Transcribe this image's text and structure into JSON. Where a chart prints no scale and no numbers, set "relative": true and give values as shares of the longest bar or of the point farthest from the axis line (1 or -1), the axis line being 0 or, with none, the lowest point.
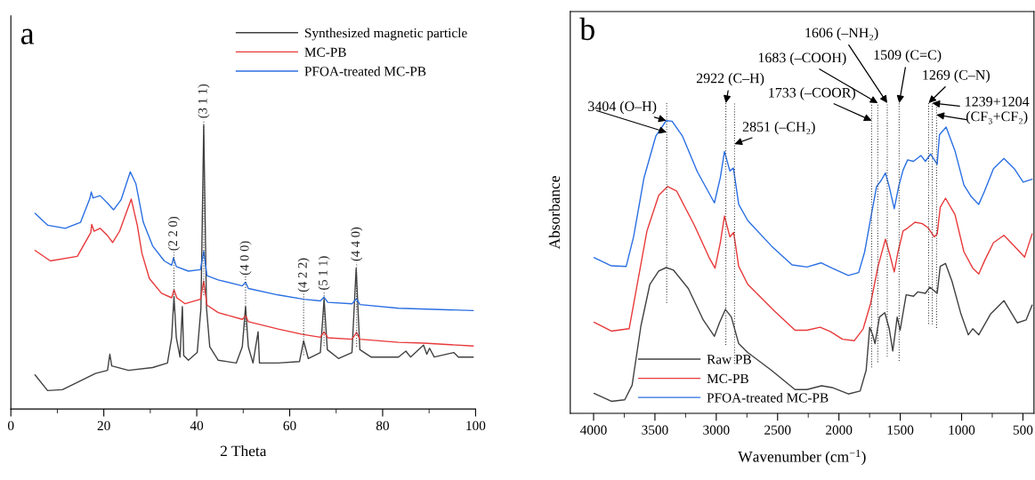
{
  "chart_data": [
    {
      "type": "line",
      "title": "a",
      "xlabel": "2 Theta",
      "relative": true,
      "tick_labels": "x",
      "legend": "top right",
      "grid": false,
      "xlim": [
        0,
        100
      ],
      "xticks": [
        0,
        {
          "value": 10,
          "label": null
        },
        20,
        {
          "value": 30,
          "label": null
        },
        40,
        {
          "value": 50,
          "label": null
        },
        60,
        {
          "value": 70,
          "label": null
        },
        80,
        {
          "value": 90,
          "label": null
        },
        100
      ],
      "ref_lines": [
        {
          "axis": "x",
          "value": 35.1,
          "line_style": "dotted",
          "color": "#404040"
        },
        {
          "axis": "x",
          "value": 41.5,
          "line_style": "dotted",
          "color": "#404040"
        },
        {
          "axis": "x",
          "value": 50.5,
          "line_style": "dotted",
          "color": "#404040"
        },
        {
          "axis": "x",
          "value": 63.0,
          "line_style": "dotted",
          "color": "#404040"
        },
        {
          "axis": "x",
          "value": 67.4,
          "line_style": "dotted",
          "color": "#404040"
        },
        {
          "axis": "x",
          "value": 74.4,
          "line_style": "dotted",
          "color": "#404040"
        }
      ],
      "annotations": [
        {
          "text": "(2 2 0)",
          "x": 35.1,
          "y": 0.533
        },
        {
          "text": "(3 1 1)",
          "x": 41.5,
          "y": 1
        },
        {
          "text": "(4 0 0)",
          "x": 50.5,
          "y": 0.447
        },
        {
          "text": "(4 2 2)",
          "x": 63.0,
          "y": 0.387
        },
        {
          "text": "(5 1 1)",
          "x": 67.4,
          "y": 0.394
        },
        {
          "text": "(4 4 0)",
          "x": 74.4,
          "y": 0.496
        }
      ],
      "series": [
        {
          "name": "Synthesized magnetic particle",
          "color": "#404040",
          "x": [
            5.2,
            7.9,
            11.1,
            15.0,
            18.2,
            20.8,
            21.3,
            21.7,
            25.3,
            30.5,
            33.7,
            34.6,
            35.1,
            35.6,
            36.4,
            36.9,
            37.2,
            38.2,
            40.1,
            40.9,
            41.5,
            42.1,
            42.8,
            44.6,
            48.5,
            49.8,
            50.5,
            51.1,
            52.1,
            53.2,
            53.5,
            57.5,
            62.1,
            63.0,
            64.0,
            66.6,
            67.4,
            68.1,
            70.5,
            73.4,
            74.3,
            75.1,
            77.5,
            83.4,
            85.0,
            86.0,
            88.8,
            89.5,
            90.1,
            91.1,
            95.3,
            96.3,
            99.5
          ],
          "values": [
            0.12,
            0.065,
            0.068,
            0.099,
            0.125,
            0.136,
            0.193,
            0.152,
            0.136,
            0.146,
            0.162,
            0.251,
            0.397,
            0.251,
            0.183,
            0.361,
            0.188,
            0.172,
            0.199,
            0.355,
            1,
            0.355,
            0.219,
            0.172,
            0.162,
            0.219,
            0.361,
            0.219,
            0.162,
            0.272,
            0.162,
            0.162,
            0.167,
            0.24,
            0.178,
            0.199,
            0.387,
            0.209,
            0.178,
            0.199,
            0.496,
            0.209,
            0.183,
            0.183,
            0.204,
            0.183,
            0.225,
            0.193,
            0.214,
            0.183,
            0.199,
            0.183,
            0.183
          ]
        },
        {
          "name": "MC-PB",
          "color": "#e8393a",
          "x": [
            5.2,
            8.5,
            14.3,
            17.2,
            17.4,
            17.9,
            19.2,
            20.8,
            21.9,
            23.4,
            25.9,
            27.2,
            28.2,
            29.8,
            32.4,
            34.6,
            35.1,
            35.7,
            37.5,
            40.8,
            41.5,
            42.2,
            44.6,
            49.8,
            50.5,
            51.1,
            57.5,
            62.7,
            66.6,
            67.4,
            68.2,
            73.4,
            74.4,
            75.1,
            83.4,
            88.8,
            99.5
          ],
          "values": [
            0.559,
            0.522,
            0.538,
            0.622,
            0.651,
            0.627,
            0.637,
            0.611,
            0.587,
            0.627,
            0.74,
            0.648,
            0.549,
            0.46,
            0.408,
            0.392,
            0.42,
            0.392,
            0.371,
            0.387,
            0.451,
            0.366,
            0.34,
            0.316,
            0.329,
            0.308,
            0.282,
            0.263,
            0.253,
            0.272,
            0.251,
            0.246,
            0.27,
            0.246,
            0.235,
            0.232,
            0.222
          ]
        },
        {
          "name": "PFOA-treated MC-PB",
          "color": "#2a6fe3",
          "x": [
            5.2,
            7.9,
            11.7,
            15.0,
            17.0,
            17.3,
            17.7,
            19.2,
            20.8,
            22.1,
            23.7,
            25.7,
            26.9,
            28.5,
            30.5,
            33.0,
            34.6,
            35.0,
            35.6,
            38.2,
            40.8,
            41.5,
            42.2,
            44.6,
            49.8,
            50.5,
            51.1,
            57.5,
            63.0,
            66.6,
            67.4,
            68.2,
            73.4,
            74.4,
            75.1,
            83.4,
            99.5
          ],
          "values": [
            0.69,
            0.648,
            0.637,
            0.658,
            0.742,
            0.765,
            0.744,
            0.752,
            0.726,
            0.702,
            0.737,
            0.836,
            0.794,
            0.658,
            0.575,
            0.522,
            0.507,
            0.533,
            0.502,
            0.486,
            0.491,
            0.556,
            0.47,
            0.455,
            0.434,
            0.447,
            0.425,
            0.402,
            0.387,
            0.381,
            0.394,
            0.376,
            0.371,
            0.389,
            0.368,
            0.355,
            0.347
          ]
        }
      ]
    },
    {
      "type": "line",
      "title": "b",
      "xlabel": "Wavenumber (cm$^{−1}$)",
      "ylabel": "Absorbance",
      "relative": true,
      "tick_labels": "x",
      "legend": "bottom left",
      "grid": false,
      "xlim": [
        4190,
        410
      ],
      "xticks": [
        4000,
        {
          "value": 3750,
          "label": null
        },
        3500,
        {
          "value": 3250,
          "label": null
        },
        3000,
        {
          "value": 2750,
          "label": null
        },
        2500,
        {
          "value": 2250,
          "label": null
        },
        2000,
        {
          "value": 1750,
          "label": null
        },
        1500,
        {
          "value": 1250,
          "label": null
        },
        1000,
        {
          "value": 750,
          "label": null
        },
        500
      ],
      "ref_lines": [
        {
          "axis": "x",
          "value": 3404,
          "line_style": "dotted",
          "color": "#404040"
        },
        {
          "axis": "x",
          "value": 2922,
          "line_style": "dotted",
          "color": "#404040"
        },
        {
          "axis": "x",
          "value": 2851,
          "line_style": "dotted",
          "color": "#404040"
        },
        {
          "axis": "x",
          "value": 1733,
          "line_style": "dotted",
          "color": "#404040"
        },
        {
          "axis": "x",
          "value": 1683,
          "line_style": "dotted",
          "color": "#404040"
        },
        {
          "axis": "x",
          "value": 1606,
          "line_style": "dotted",
          "color": "#404040"
        },
        {
          "axis": "x",
          "value": 1509,
          "line_style": "dotted",
          "color": "#404040"
        },
        {
          "axis": "x",
          "value": 1269,
          "line_style": "dotted",
          "color": "#404040"
        },
        {
          "axis": "x",
          "value": 1239,
          "line_style": "dotted",
          "color": "#404040"
        },
        {
          "axis": "x",
          "value": 1204,
          "line_style": "dotted",
          "color": "#404040"
        }
      ],
      "annotations": [
        {
          "text": "3404 (O–H)",
          "x": 3408,
          "y": 1
        },
        {
          "text": "2922 (C–H)",
          "x": 2922,
          "y": 1.06
        },
        {
          "text": "2851 (–CH₂)",
          "x": 2851,
          "y": 0.92
        },
        {
          "text": "1733 (–COOR)",
          "x": 1733,
          "y": 1.0
        },
        {
          "text": "1683 (–COOH)",
          "x": 1683,
          "y": 1.06
        },
        {
          "text": "1606 (–NH₂)",
          "x": 1606,
          "y": 1.06
        },
        {
          "text": "1509 (C=C)",
          "x": 1509,
          "y": 1.06
        },
        {
          "text": "1269 (C–N)",
          "x": 1269,
          "y": 1.06
        },
        {
          "text": "1239+1204\n(CF₃+CF₂)",
          "x": 1239,
          "y": 1.06
        }
      ],
      "series": [
        {
          "name": "Raw PB",
          "color": "#404040",
          "x": [
            3995,
            3855,
            3746,
            3686,
            3614,
            3541,
            3469,
            3408,
            3348,
            3227,
            3106,
            3015,
            2974,
            2925,
            2877,
            2817,
            2744,
            2551,
            2358,
            2261,
            2141,
            2056,
            1923,
            1827,
            1778,
            1749,
            1725,
            1706,
            1669,
            1626,
            1590,
            1561,
            1537,
            1525,
            1501,
            1452,
            1392,
            1356,
            1295,
            1259,
            1199,
            1174,
            1131,
            1078,
            1005,
            945,
            909,
            860,
            764,
            655,
            546,
            474,
            425
          ],
          "values": [
            0.068,
            0.041,
            0.046,
            0.096,
            0.299,
            0.441,
            0.486,
            0.498,
            0.489,
            0.426,
            0.319,
            0.263,
            0.309,
            0.355,
            0.329,
            0.238,
            0.208,
            0.147,
            0.081,
            0.081,
            0.094,
            0.088,
            0.066,
            0.076,
            0.147,
            0.294,
            0.268,
            0.238,
            0.329,
            0.344,
            0.289,
            0.213,
            0.289,
            0.329,
            0.284,
            0.405,
            0.4,
            0.415,
            0.41,
            0.431,
            0.41,
            0.502,
            0.512,
            0.451,
            0.339,
            0.268,
            0.289,
            0.268,
            0.339,
            0.385,
            0.309,
            0.319,
            0.37
          ]
        },
        {
          "name": "MC-PB",
          "color": "#e8393a",
          "x": [
            3995,
            3855,
            3710,
            3662,
            3565,
            3469,
            3396,
            3324,
            3179,
            3058,
            3010,
            2967,
            2933,
            2889,
            2858,
            2817,
            2744,
            2527,
            2358,
            2261,
            2153,
            2068,
            1971,
            1875,
            1802,
            1742,
            1681,
            1621,
            1585,
            1549,
            1518,
            1477,
            1440,
            1380,
            1320,
            1271,
            1223,
            1199,
            1174,
            1131,
            1054,
            981,
            909,
            860,
            812,
            740,
            655,
            571,
            486,
            425
          ],
          "values": [
            0.311,
            0.281,
            0.289,
            0.4,
            0.623,
            0.745,
            0.775,
            0.76,
            0.643,
            0.532,
            0.496,
            0.583,
            0.674,
            0.603,
            0.618,
            0.502,
            0.441,
            0.35,
            0.284,
            0.284,
            0.294,
            0.279,
            0.253,
            0.248,
            0.289,
            0.375,
            0.502,
            0.595,
            0.542,
            0.483,
            0.552,
            0.623,
            0.633,
            0.653,
            0.648,
            0.633,
            0.603,
            0.613,
            0.704,
            0.735,
            0.679,
            0.552,
            0.496,
            0.476,
            0.522,
            0.583,
            0.608,
            0.572,
            0.534,
            0.613
          ]
        },
        {
          "name": "PFOA-treated MC-PB",
          "color": "#2a6fe3",
          "x": [
            3995,
            3855,
            3734,
            3674,
            3589,
            3493,
            3408,
            3360,
            3275,
            3155,
            3015,
            2967,
            2933,
            2889,
            2860,
            2817,
            2744,
            2551,
            2382,
            2261,
            2146,
            2056,
            1923,
            1839,
            1790,
            1742,
            1693,
            1657,
            1621,
            1590,
            1549,
            1513,
            1477,
            1440,
            1392,
            1332,
            1295,
            1252,
            1199,
            1180,
            1126,
            1054,
            981,
            921,
            860,
            812,
            740,
            655,
            571,
            498,
            425
          ],
          "values": [
            0.532,
            0.504,
            0.502,
            0.603,
            0.805,
            0.947,
            1,
            0.998,
            0.947,
            0.826,
            0.719,
            0.805,
            0.895,
            0.828,
            0.838,
            0.714,
            0.659,
            0.572,
            0.507,
            0.5,
            0.514,
            0.496,
            0.471,
            0.481,
            0.552,
            0.664,
            0.775,
            0.795,
            0.821,
            0.775,
            0.699,
            0.775,
            0.831,
            0.866,
            0.861,
            0.881,
            0.861,
            0.886,
            0.851,
            0.952,
            0.978,
            0.897,
            0.78,
            0.74,
            0.714,
            0.76,
            0.836,
            0.871,
            0.836,
            0.79,
            0.8
          ]
        }
      ]
    }
  ]
}
